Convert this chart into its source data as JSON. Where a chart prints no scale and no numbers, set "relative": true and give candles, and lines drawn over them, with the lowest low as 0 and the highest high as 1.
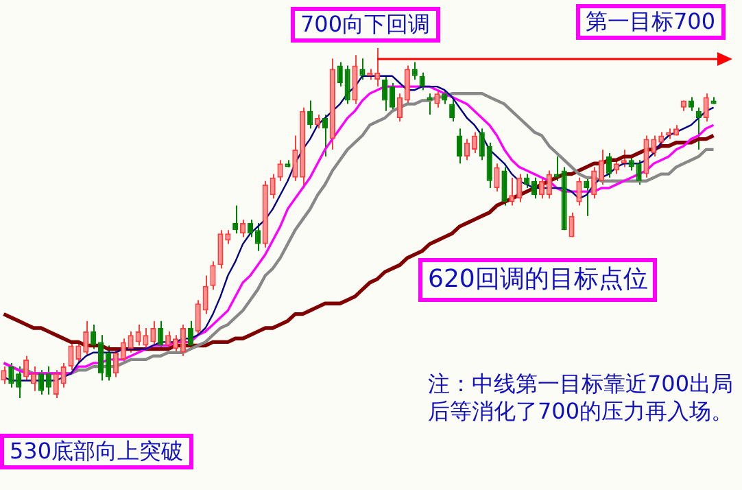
{
  "chart_data": {
    "type": "candlestick",
    "relative": true,
    "categories": [
      null,
      null,
      null,
      null,
      null,
      null,
      null,
      null,
      null,
      null,
      null,
      null,
      null,
      null,
      null,
      null,
      null,
      null,
      null,
      null,
      null,
      null,
      null,
      null,
      null,
      null,
      null,
      null,
      null,
      null,
      null,
      null,
      null,
      null,
      null,
      null,
      null,
      null,
      null,
      null,
      null,
      null,
      null,
      null,
      null,
      null,
      null,
      null,
      null,
      null,
      null,
      null,
      null,
      null,
      null,
      null,
      null,
      null,
      null,
      null,
      null,
      null,
      null,
      null,
      null,
      null,
      null,
      null,
      null,
      null,
      null,
      null,
      null,
      null,
      null,
      null,
      null,
      null,
      null,
      null,
      null,
      null,
      null,
      null,
      null,
      null,
      null,
      null,
      null,
      null,
      null,
      null,
      null,
      null,
      null,
      null
    ],
    "ohlc": [
      [
        0.05,
        0.09,
        0.04,
        0.08
      ],
      [
        0.09,
        0.1,
        0.03,
        0.04
      ],
      [
        0.07,
        0.09,
        0,
        0.03
      ],
      [
        0.06,
        0.12,
        0.05,
        0.11
      ],
      [
        0.04,
        0.09,
        0.02,
        0.07
      ],
      [
        0.07,
        0.08,
        0.01,
        0.02
      ],
      [
        0.07,
        0.09,
        0.01,
        0.03
      ],
      [
        0.01,
        0.08,
        0,
        0.07
      ],
      [
        0.04,
        0.1,
        0.03,
        0.09
      ],
      [
        0.09,
        0.16,
        0.08,
        0.15
      ],
      [
        0.11,
        0.16,
        0.1,
        0.15
      ],
      [
        0.13,
        0.22,
        0.12,
        0.19
      ],
      [
        0.19,
        0.21,
        0.14,
        0.15
      ],
      [
        0.16,
        0.18,
        0.05,
        0.07
      ],
      [
        0.13,
        0.15,
        0.05,
        0.06
      ],
      [
        0.07,
        0.14,
        0.06,
        0.13
      ],
      [
        0.11,
        0.17,
        0.1,
        0.16
      ],
      [
        0.14,
        0.19,
        0.13,
        0.18
      ],
      [
        0.16,
        0.21,
        0.15,
        0.19
      ],
      [
        0.15,
        0.2,
        0.14,
        0.18
      ],
      [
        0.16,
        0.22,
        0.15,
        0.2
      ],
      [
        0.2,
        0.22,
        0.14,
        0.15
      ],
      [
        0.15,
        0.19,
        0.14,
        0.18
      ],
      [
        0.14,
        0.18,
        0.13,
        0.17
      ],
      [
        0.13,
        0.21,
        0.12,
        0.2
      ],
      [
        0.2,
        0.22,
        0.14,
        0.15
      ],
      [
        0.19,
        0.28,
        0.18,
        0.27
      ],
      [
        0.25,
        0.35,
        0.24,
        0.32
      ],
      [
        0.32,
        0.39,
        0.31,
        0.38
      ],
      [
        0.38,
        0.48,
        0.37,
        0.47
      ],
      [
        0.45,
        0.48,
        0.44,
        0.47
      ],
      [
        0.5,
        0.55,
        0.47,
        0.48
      ],
      [
        0.47,
        0.51,
        0.46,
        0.5
      ],
      [
        0.5,
        0.51,
        0.46,
        0.47
      ],
      [
        0.48,
        0.5,
        0.42,
        0.44
      ],
      [
        0.44,
        0.62,
        0.43,
        0.61
      ],
      [
        0.58,
        0.64,
        0.57,
        0.63
      ],
      [
        0.63,
        0.68,
        0.62,
        0.67
      ],
      [
        0.67,
        0.68,
        0.66,
        0.66
      ],
      [
        0.63,
        0.75,
        0.62,
        0.71
      ],
      [
        0.63,
        0.83,
        0.6,
        0.82
      ],
      [
        0.82,
        0.85,
        0.77,
        0.78
      ],
      [
        0.78,
        0.81,
        0.77,
        0.8
      ],
      [
        0.8,
        0.81,
        0.69,
        0.77
      ],
      [
        0.74,
        0.97,
        0.71,
        0.94
      ],
      [
        0.95,
        0.96,
        0.89,
        0.9
      ],
      [
        0.94,
        0.95,
        0.84,
        0.85
      ],
      [
        0.85,
        0.98,
        0.84,
        0.95
      ],
      [
        0.94,
        0.97,
        0.91,
        0.92
      ],
      [
        0.92,
        0.94,
        0.91,
        0.93
      ],
      [
        0.91,
        1,
        0.89,
        0.93
      ],
      [
        0.91,
        0.92,
        0.82,
        0.85
      ],
      [
        0.89,
        0.9,
        0.82,
        0.83
      ],
      [
        0.8,
        0.87,
        0.79,
        0.86
      ],
      [
        0.85,
        0.95,
        0.84,
        0.94
      ],
      [
        0.94,
        0.96,
        0.91,
        0.92
      ],
      [
        0.92,
        0.93,
        0.88,
        0.89
      ],
      [
        0.86,
        0.87,
        0.81,
        0.85
      ],
      [
        0.84,
        0.88,
        0.83,
        0.87
      ],
      [
        0.87,
        0.88,
        0.84,
        0.85
      ],
      [
        0.84,
        0.86,
        0.79,
        0.8
      ],
      [
        0.75,
        0.77,
        0.67,
        0.69
      ],
      [
        0.69,
        0.74,
        0.68,
        0.73
      ],
      [
        0.71,
        0.76,
        0.7,
        0.75
      ],
      [
        0.76,
        0.77,
        0.68,
        0.69
      ],
      [
        0.72,
        0.73,
        0.6,
        0.62
      ],
      [
        0.6,
        0.67,
        0.59,
        0.66
      ],
      [
        0.65,
        0.66,
        0.55,
        0.56
      ],
      [
        0.56,
        0.63,
        0.55,
        0.58
      ],
      [
        0.57,
        0.64,
        0.56,
        0.63
      ],
      [
        0.63,
        0.64,
        0.6,
        0.61
      ],
      [
        0.62,
        0.63,
        0.57,
        0.58
      ],
      [
        0.58,
        0.63,
        0.57,
        0.62
      ],
      [
        0.58,
        0.65,
        0.57,
        0.64
      ],
      [
        0.64,
        0.69,
        0.62,
        0.63
      ],
      [
        0.65,
        0.66,
        0.48,
        0.48
      ],
      [
        0.46,
        0.53,
        0.46,
        0.52
      ],
      [
        0.56,
        0.63,
        0.55,
        0.62
      ],
      [
        0.62,
        0.63,
        0.52,
        0.6
      ],
      [
        0.58,
        0.66,
        0.57,
        0.65
      ],
      [
        0.62,
        0.71,
        0.61,
        0.68
      ],
      [
        0.69,
        0.7,
        0.63,
        0.64
      ],
      [
        0.65,
        0.68,
        0.64,
        0.67
      ],
      [
        0.67,
        0.71,
        0.66,
        0.68
      ],
      [
        0.68,
        0.69,
        0.65,
        0.66
      ],
      [
        0.67,
        0.68,
        0.61,
        0.62
      ],
      [
        0.64,
        0.75,
        0.63,
        0.74
      ],
      [
        0.7,
        0.75,
        0.69,
        0.74
      ],
      [
        0.73,
        0.76,
        0.72,
        0.75
      ],
      [
        0.75,
        0.77,
        0.74,
        0.76
      ],
      [
        0.75,
        0.78,
        0.75,
        0.77
      ],
      [
        0.83,
        0.85,
        0.82,
        0.85
      ],
      [
        0.85,
        0.86,
        0.82,
        0.83
      ],
      [
        0.82,
        0.83,
        0.71,
        0.8
      ],
      [
        0.8,
        0.87,
        0.79,
        0.86
      ],
      [
        0.85,
        0.86,
        0.84,
        0.84
      ]
    ],
    "series": [
      {
        "type": "line",
        "color": "#000080",
        "values": [
          0.06,
          0.05,
          0.05,
          0.05,
          0.05,
          0.05,
          0.05,
          0.05,
          0.06,
          0.07,
          0.1,
          0.12,
          0.13,
          0.13,
          0.13,
          0.13,
          0.14,
          0.14,
          0.14,
          0.14,
          0.15,
          0.16,
          0.16,
          0.16,
          0.17,
          0.17,
          0.18,
          0.2,
          0.24,
          0.29,
          0.35,
          0.39,
          0.44,
          0.47,
          0.49,
          0.51,
          0.54,
          0.58,
          0.62,
          0.67,
          0.71,
          0.74,
          0.78,
          0.8,
          0.82,
          0.84,
          0.87,
          0.89,
          0.92,
          0.92,
          0.92,
          0.92,
          0.92,
          0.9,
          0.88,
          0.88,
          0.89,
          0.89,
          0.89,
          0.88,
          0.86,
          0.83,
          0.8,
          0.78,
          0.75,
          0.71,
          0.69,
          0.67,
          0.64,
          0.62,
          0.61,
          0.6,
          0.6,
          0.6,
          0.6,
          0.6,
          0.59,
          0.57,
          0.58,
          0.61,
          0.63,
          0.64,
          0.66,
          0.67,
          0.67,
          0.67,
          0.68,
          0.7,
          0.73,
          0.75,
          0.76,
          0.77,
          0.78,
          0.8,
          0.82,
          0.83
        ]
      },
      {
        "type": "line",
        "color": "#ff00ff",
        "values": [
          0.1,
          0.09,
          0.08,
          0.07,
          0.07,
          0.07,
          0.07,
          0.07,
          0.07,
          0.07,
          0.09,
          0.09,
          0.1,
          0.1,
          0.11,
          0.11,
          0.11,
          0.12,
          0.13,
          0.14,
          0.15,
          0.15,
          0.15,
          0.16,
          0.16,
          0.16,
          0.18,
          0.19,
          0.21,
          0.23,
          0.25,
          0.29,
          0.33,
          0.35,
          0.38,
          0.41,
          0.45,
          0.49,
          0.54,
          0.57,
          0.6,
          0.63,
          0.67,
          0.71,
          0.74,
          0.77,
          0.8,
          0.82,
          0.85,
          0.87,
          0.88,
          0.89,
          0.89,
          0.89,
          0.89,
          0.89,
          0.89,
          0.89,
          0.88,
          0.87,
          0.86,
          0.85,
          0.84,
          0.82,
          0.8,
          0.78,
          0.75,
          0.71,
          0.68,
          0.66,
          0.65,
          0.64,
          0.63,
          0.62,
          0.6,
          0.59,
          0.59,
          0.59,
          0.59,
          0.59,
          0.6,
          0.6,
          0.61,
          0.62,
          0.63,
          0.64,
          0.65,
          0.67,
          0.68,
          0.69,
          0.71,
          0.72,
          0.74,
          0.75,
          0.77,
          0.78
        ]
      },
      {
        "type": "line",
        "color": "#888888",
        "values": [
          0.1,
          0.09,
          0.08,
          0.08,
          0.07,
          0.07,
          0.07,
          0.07,
          0.07,
          0.07,
          0.08,
          0.08,
          0.09,
          0.09,
          0.09,
          0.09,
          0.1,
          0.11,
          0.11,
          0.11,
          0.12,
          0.12,
          0.13,
          0.13,
          0.13,
          0.14,
          0.15,
          0.16,
          0.18,
          0.2,
          0.21,
          0.23,
          0.25,
          0.28,
          0.31,
          0.35,
          0.37,
          0.4,
          0.44,
          0.48,
          0.51,
          0.54,
          0.58,
          0.61,
          0.65,
          0.68,
          0.71,
          0.73,
          0.75,
          0.78,
          0.79,
          0.8,
          0.82,
          0.83,
          0.84,
          0.84,
          0.85,
          0.85,
          0.86,
          0.86,
          0.87,
          0.87,
          0.87,
          0.87,
          0.87,
          0.86,
          0.85,
          0.84,
          0.82,
          0.8,
          0.78,
          0.76,
          0.75,
          0.72,
          0.7,
          0.68,
          0.66,
          0.64,
          0.63,
          0.63,
          0.62,
          0.62,
          0.62,
          0.62,
          0.62,
          0.62,
          0.62,
          0.63,
          0.64,
          0.64,
          0.66,
          0.67,
          0.68,
          0.69,
          0.71,
          0.71
        ]
      },
      {
        "type": "line",
        "color": "#800000",
        "values": [
          0.24,
          0.23,
          0.22,
          0.21,
          0.2,
          0.2,
          0.19,
          0.18,
          0.17,
          0.16,
          0.16,
          0.15,
          0.15,
          0.15,
          0.14,
          0.14,
          0.14,
          0.14,
          0.14,
          0.14,
          0.14,
          0.14,
          0.14,
          0.15,
          0.15,
          0.15,
          0.15,
          0.15,
          0.16,
          0.16,
          0.16,
          0.17,
          0.17,
          0.18,
          0.19,
          0.2,
          0.2,
          0.21,
          0.22,
          0.24,
          0.24,
          0.25,
          0.26,
          0.27,
          0.27,
          0.27,
          0.28,
          0.29,
          0.31,
          0.33,
          0.34,
          0.36,
          0.37,
          0.38,
          0.4,
          0.41,
          0.42,
          0.44,
          0.45,
          0.46,
          0.47,
          0.49,
          0.5,
          0.51,
          0.52,
          0.53,
          0.55,
          0.56,
          0.57,
          0.58,
          0.59,
          0.6,
          0.61,
          0.62,
          0.63,
          0.64,
          0.64,
          0.65,
          0.66,
          0.67,
          0.67,
          0.68,
          0.68,
          0.69,
          0.69,
          0.7,
          0.71,
          0.71,
          0.72,
          0.72,
          0.73,
          0.73,
          0.73,
          0.74,
          0.74,
          0.75
        ]
      }
    ],
    "annotations": [
      "700向下回调",
      "第一目标700",
      "620回调的目标点位",
      "注：中线第一目标靠近700出局后等消化了700的压力再入场。",
      "530底部向上突破"
    ]
  }
}
